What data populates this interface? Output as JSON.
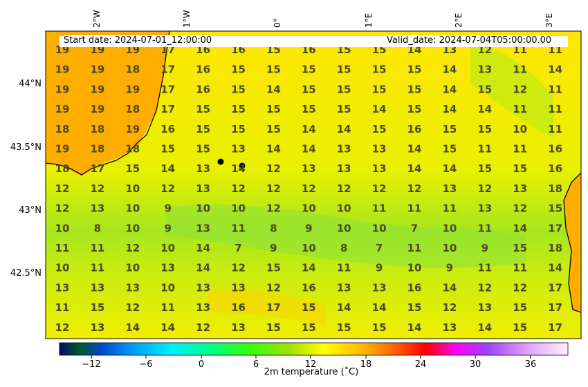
{
  "header": {
    "start_date": "Start date: 2024-07-01_12:00:00",
    "valid_date": "Valid_date: 2024-07-04T05:00:00.00"
  },
  "map": {
    "lon_labels": [
      "2°W",
      "1°W",
      "0°",
      "1°E",
      "2°E",
      "3°E"
    ],
    "lat_labels": [
      "44°N",
      "43.5°N",
      "43°N",
      "42.5°N"
    ],
    "temperature_grid": [
      [
        "19",
        "19",
        "19",
        "17",
        "16",
        "16",
        "15",
        "16",
        "15",
        "15",
        "14",
        "13",
        "12",
        "11",
        "11"
      ],
      [
        "19",
        "19",
        "18",
        "17",
        "16",
        "15",
        "15",
        "15",
        "15",
        "15",
        "15",
        "14",
        "13",
        "11",
        "14"
      ],
      [
        "19",
        "19",
        "19",
        "17",
        "16",
        "15",
        "14",
        "15",
        "15",
        "15",
        "15",
        "14",
        "15",
        "12",
        "11"
      ],
      [
        "19",
        "19",
        "18",
        "17",
        "15",
        "15",
        "15",
        "15",
        "15",
        "14",
        "15",
        "14",
        "14",
        "11",
        "11"
      ],
      [
        "18",
        "18",
        "19",
        "16",
        "15",
        "15",
        "15",
        "14",
        "14",
        "15",
        "16",
        "15",
        "15",
        "10",
        "11"
      ],
      [
        "19",
        "18",
        "18",
        "15",
        "15",
        "13",
        "14",
        "14",
        "13",
        "13",
        "14",
        "15",
        "11",
        "11",
        "16"
      ],
      [
        "18",
        "17",
        "15",
        "14",
        "13",
        "14",
        "12",
        "13",
        "13",
        "13",
        "14",
        "14",
        "15",
        "15",
        "16"
      ],
      [
        "12",
        "12",
        "10",
        "12",
        "13",
        "12",
        "12",
        "12",
        "12",
        "12",
        "12",
        "13",
        "12",
        "13",
        "18"
      ],
      [
        "12",
        "13",
        "10",
        "9",
        "10",
        "10",
        "12",
        "10",
        "10",
        "11",
        "11",
        "11",
        "13",
        "12",
        "15"
      ],
      [
        "10",
        "8",
        "10",
        "9",
        "13",
        "11",
        "8",
        "9",
        "10",
        "10",
        "7",
        "10",
        "11",
        "14",
        "17"
      ],
      [
        "11",
        "11",
        "12",
        "10",
        "14",
        "7",
        "9",
        "10",
        "8",
        "7",
        "11",
        "10",
        "9",
        "15",
        "18"
      ],
      [
        "10",
        "11",
        "10",
        "13",
        "14",
        "12",
        "15",
        "14",
        "11",
        "9",
        "10",
        "9",
        "11",
        "11",
        "14"
      ],
      [
        "13",
        "13",
        "13",
        "10",
        "13",
        "13",
        "12",
        "16",
        "13",
        "13",
        "16",
        "14",
        "12",
        "12",
        "17"
      ],
      [
        "11",
        "15",
        "12",
        "11",
        "13",
        "16",
        "17",
        "15",
        "14",
        "14",
        "15",
        "12",
        "13",
        "15",
        "17"
      ],
      [
        "12",
        "13",
        "14",
        "14",
        "12",
        "13",
        "15",
        "15",
        "15",
        "15",
        "14",
        "13",
        "14",
        "15",
        "17"
      ]
    ]
  },
  "colorbar": {
    "label": "2m temperature ($^\\circ$C)",
    "ticks": [
      "−12",
      "−6",
      "0",
      "6",
      "12",
      "18",
      "24",
      "30",
      "36"
    ]
  },
  "colors": {
    "coast": "#000000",
    "value_text": "#4a4a1a",
    "marker": "#000000"
  }
}
